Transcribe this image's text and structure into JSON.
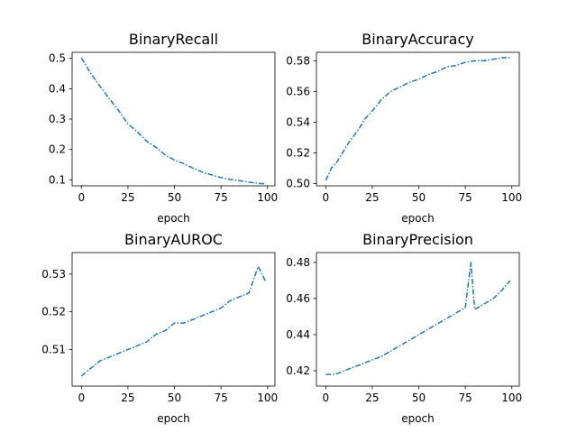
{
  "chart_data": [
    {
      "type": "line",
      "title": "BinaryRecall",
      "xlabel": "epoch",
      "ylabel": "",
      "xlim": [
        -5,
        104
      ],
      "ylim": [
        0.08,
        0.52
      ],
      "xticks": [
        0,
        25,
        50,
        75,
        100
      ],
      "yticks": [
        0.1,
        0.2,
        0.3,
        0.4,
        0.5
      ],
      "ytick_labels": [
        "0.1",
        "0.2",
        "0.3",
        "0.4",
        "0.5"
      ],
      "color": "#1f77b4",
      "series": [
        {
          "x": [
            0,
            5,
            10,
            15,
            20,
            25,
            30,
            35,
            40,
            45,
            50,
            55,
            60,
            65,
            70,
            75,
            80,
            85,
            90,
            95,
            99
          ],
          "y": [
            0.502,
            0.45,
            0.408,
            0.367,
            0.328,
            0.284,
            0.258,
            0.227,
            0.207,
            0.182,
            0.165,
            0.153,
            0.138,
            0.125,
            0.116,
            0.107,
            0.101,
            0.097,
            0.092,
            0.088,
            0.087
          ]
        }
      ]
    },
    {
      "type": "line",
      "title": "BinaryAccuracy",
      "xlabel": "epoch",
      "ylabel": "",
      "xlim": [
        -5,
        104
      ],
      "ylim": [
        0.4985,
        0.5855
      ],
      "xticks": [
        0,
        25,
        50,
        75,
        100
      ],
      "yticks": [
        0.5,
        0.52,
        0.54,
        0.56,
        0.58
      ],
      "ytick_labels": [
        "0.50",
        "0.52",
        "0.54",
        "0.56",
        "0.58"
      ],
      "color": "#1f77b4",
      "series": [
        {
          "x": [
            0,
            3,
            6,
            9,
            12,
            15,
            18,
            21,
            24,
            27,
            30,
            35,
            40,
            45,
            50,
            55,
            60,
            65,
            70,
            75,
            80,
            85,
            90,
            95,
            99
          ],
          "y": [
            0.502,
            0.51,
            0.514,
            0.52,
            0.526,
            0.531,
            0.536,
            0.542,
            0.546,
            0.55,
            0.555,
            0.56,
            0.563,
            0.566,
            0.568,
            0.571,
            0.573,
            0.576,
            0.577,
            0.579,
            0.58,
            0.58,
            0.581,
            0.582,
            0.582
          ]
        }
      ]
    },
    {
      "type": "line",
      "title": "BinaryAUROC",
      "xlabel": "epoch",
      "ylabel": "",
      "xlim": [
        -5,
        104
      ],
      "ylim": [
        0.5003,
        0.5357
      ],
      "xticks": [
        0,
        25,
        50,
        75,
        100
      ],
      "yticks": [
        0.51,
        0.52,
        0.53
      ],
      "ytick_labels": [
        "0.51",
        "0.52",
        "0.53"
      ],
      "color": "#1f77b4",
      "series": [
        {
          "x": [
            0,
            5,
            10,
            15,
            20,
            25,
            30,
            35,
            40,
            45,
            50,
            55,
            60,
            65,
            70,
            75,
            80,
            85,
            90,
            95,
            99
          ],
          "y": [
            0.503,
            0.505,
            0.507,
            0.508,
            0.509,
            0.51,
            0.511,
            0.512,
            0.514,
            0.515,
            0.517,
            0.517,
            0.518,
            0.519,
            0.52,
            0.521,
            0.523,
            0.524,
            0.525,
            0.532,
            0.528
          ]
        }
      ]
    },
    {
      "type": "line",
      "title": "BinaryPrecision",
      "xlabel": "epoch",
      "ylabel": "",
      "xlim": [
        -5,
        104
      ],
      "ylim": [
        0.4115,
        0.4855
      ],
      "xticks": [
        0,
        25,
        50,
        75,
        100
      ],
      "yticks": [
        0.42,
        0.44,
        0.46,
        0.48
      ],
      "ytick_labels": [
        "0.42",
        "0.44",
        "0.46",
        "0.48"
      ],
      "color": "#1f77b4",
      "series": [
        {
          "x": [
            0,
            5,
            10,
            15,
            20,
            25,
            30,
            35,
            40,
            45,
            50,
            55,
            60,
            65,
            70,
            75,
            78,
            80,
            85,
            90,
            95,
            99
          ],
          "y": [
            0.418,
            0.418,
            0.42,
            0.422,
            0.424,
            0.426,
            0.428,
            0.431,
            0.434,
            0.437,
            0.44,
            0.443,
            0.446,
            0.449,
            0.452,
            0.455,
            0.48,
            0.454,
            0.457,
            0.46,
            0.465,
            0.47
          ]
        }
      ]
    }
  ]
}
